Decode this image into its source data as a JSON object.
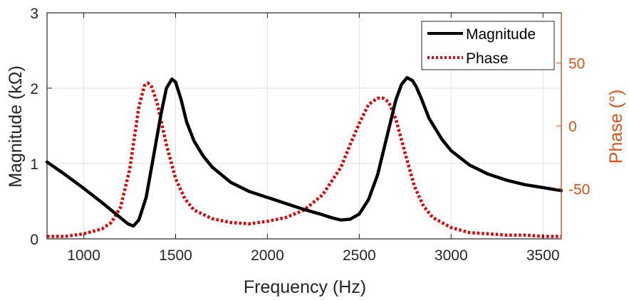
{
  "chart_data": {
    "type": "line",
    "title": "",
    "xlabel": "Frequency (Hz)",
    "ylabel_left": "Magnitude (kΩ)",
    "ylabel_right": "Phase (°)",
    "xlim": [
      800,
      3600
    ],
    "ylim_left": [
      0,
      3
    ],
    "ylim_right": [
      -90,
      90
    ],
    "x_ticks": [
      1000,
      1500,
      2000,
      2500,
      3000,
      3500
    ],
    "x_tick_labels": [
      "1000",
      "1500",
      "2000",
      "2500",
      "3000",
      "3500"
    ],
    "y_left_ticks": [
      0,
      1,
      2,
      3
    ],
    "y_left_tick_labels": [
      "0",
      "1",
      "2",
      "3"
    ],
    "y_right_ticks": [
      -50,
      0,
      50
    ],
    "y_right_tick_labels": [
      "-50",
      "0",
      "50"
    ],
    "grid": true,
    "legend_position": "top-right",
    "series": [
      {
        "name": "Magnitude",
        "axis": "left",
        "color": "#000000",
        "style": "solid",
        "x": [
          800,
          900,
          1000,
          1100,
          1150,
          1200,
          1240,
          1270,
          1300,
          1340,
          1380,
          1420,
          1450,
          1480,
          1500,
          1530,
          1560,
          1600,
          1650,
          1700,
          1800,
          1900,
          2000,
          2100,
          2200,
          2300,
          2350,
          2400,
          2450,
          2500,
          2550,
          2600,
          2650,
          2700,
          2730,
          2760,
          2790,
          2810,
          2840,
          2880,
          2950,
          3000,
          3100,
          3200,
          3300,
          3400,
          3500,
          3600
        ],
        "y": [
          1.02,
          0.85,
          0.67,
          0.48,
          0.38,
          0.28,
          0.2,
          0.17,
          0.25,
          0.55,
          1.1,
          1.65,
          2.0,
          2.12,
          2.08,
          1.85,
          1.55,
          1.3,
          1.1,
          0.95,
          0.75,
          0.63,
          0.55,
          0.47,
          0.39,
          0.32,
          0.28,
          0.25,
          0.26,
          0.33,
          0.52,
          0.85,
          1.35,
          1.85,
          2.05,
          2.14,
          2.1,
          2.02,
          1.85,
          1.6,
          1.32,
          1.17,
          0.98,
          0.86,
          0.78,
          0.72,
          0.68,
          0.64
        ]
      },
      {
        "name": "Phase",
        "axis": "right",
        "color": "#e00000",
        "style": "dotted",
        "x": [
          800,
          900,
          1000,
          1100,
          1150,
          1200,
          1250,
          1300,
          1330,
          1350,
          1370,
          1400,
          1450,
          1500,
          1550,
          1600,
          1700,
          1800,
          1900,
          2000,
          2100,
          2200,
          2300,
          2400,
          2450,
          2500,
          2550,
          2600,
          2630,
          2660,
          2700,
          2750,
          2800,
          2850,
          2900,
          3000,
          3100,
          3200,
          3300,
          3400,
          3500,
          3600
        ],
        "y": [
          -88,
          -88,
          -86,
          -82,
          -77,
          -65,
          -35,
          15,
          32,
          34,
          31,
          18,
          -15,
          -42,
          -58,
          -67,
          -74,
          -77,
          -78,
          -76,
          -73,
          -67,
          -55,
          -33,
          -15,
          2,
          17,
          22,
          22,
          19,
          5,
          -22,
          -48,
          -64,
          -73,
          -81,
          -85,
          -86,
          -87,
          -87,
          -88,
          -88
        ]
      }
    ]
  }
}
